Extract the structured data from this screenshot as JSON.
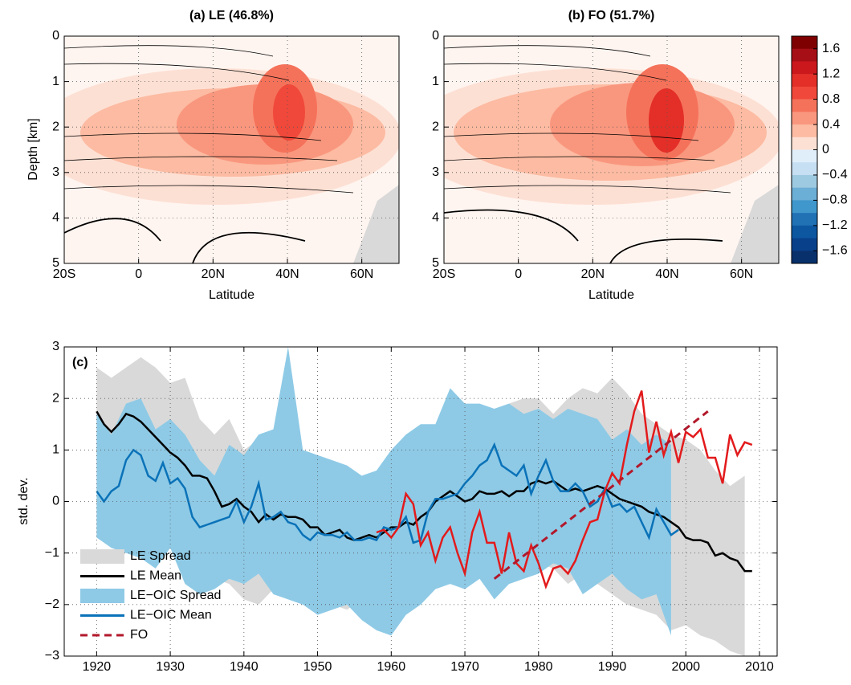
{
  "chart_data": [
    {
      "type": "contour",
      "title": "(a) LE (46.8%)",
      "xlabel": "Latitude",
      "ylabel": "Depth [km]",
      "xlim": [
        -20,
        70
      ],
      "xticks": [
        {
          "value": -20,
          "label": "20S"
        },
        0,
        {
          "value": 20,
          "label": "20N"
        },
        {
          "value": 40,
          "label": "40N"
        },
        {
          "value": 60,
          "label": "60N"
        }
      ],
      "ylim": [
        0,
        5
      ],
      "y_inverted": true,
      "yticks": [
        0,
        1,
        2,
        3,
        4,
        5
      ],
      "grid": true
    },
    {
      "type": "contour",
      "title": "(b) FO (51.7%)",
      "xlabel": "Latitude",
      "xlim": [
        -20,
        70
      ],
      "xticks": [
        {
          "value": -20,
          "label": "20S"
        },
        0,
        {
          "value": 20,
          "label": "20N"
        },
        {
          "value": 40,
          "label": "40N"
        },
        {
          "value": 60,
          "label": "60N"
        }
      ],
      "ylim": [
        0,
        5
      ],
      "y_inverted": true,
      "yticks": [
        0,
        1,
        2,
        3,
        4,
        5
      ],
      "grid": true,
      "colorbar": {
        "lim": [
          -1.8,
          1.8
        ],
        "ticks": [
          1.6,
          1.2,
          0.8,
          0.4,
          0,
          {
            "value": -0.4,
            "label": "−0.4"
          },
          {
            "value": -0.8,
            "label": "−0.8"
          },
          {
            "value": -1.2,
            "label": "−1.2"
          },
          {
            "value": -1.6,
            "label": "−1.6"
          }
        ],
        "colors": [
          "#7f0000",
          "#a50f15",
          "#cb181d",
          "#e32f27",
          "#f0483a",
          "#f5725a",
          "#f9977e",
          "#fcbba2",
          "#fde0d4",
          "#e0eefa",
          "#c6dff2",
          "#9ecae1",
          "#6baed6",
          "#3f97cc",
          "#2171b5",
          "#0d56a0",
          "#08408a",
          "#08306b"
        ]
      }
    },
    {
      "type": "line",
      "title": "(c)",
      "ylabel": "std. dev.",
      "xlim": [
        1915.6,
        2012.4
      ],
      "xticks": [
        1920,
        1930,
        1940,
        1950,
        1960,
        1970,
        1980,
        1990,
        2000,
        2010
      ],
      "ylim": [
        -3,
        3
      ],
      "yticks": [
        {
          "value": -3,
          "label": "−3"
        },
        {
          "value": -2,
          "label": "−2"
        },
        {
          "value": -1,
          "label": "−1"
        },
        0,
        1,
        2,
        3
      ],
      "grid": true,
      "x": [
        1920,
        1921,
        1922,
        1923,
        1924,
        1925,
        1926,
        1927,
        1928,
        1929,
        1930,
        1931,
        1932,
        1933,
        1934,
        1935,
        1936,
        1937,
        1938,
        1939,
        1940,
        1941,
        1942,
        1943,
        1944,
        1945,
        1946,
        1947,
        1948,
        1949,
        1950,
        1951,
        1952,
        1953,
        1954,
        1955,
        1956,
        1957,
        1958,
        1959,
        1960,
        1961,
        1962,
        1963,
        1964,
        1965,
        1966,
        1967,
        1968,
        1969,
        1970,
        1971,
        1972,
        1973,
        1974,
        1975,
        1976,
        1977,
        1978,
        1979,
        1980,
        1981,
        1982,
        1983,
        1984,
        1985,
        1986,
        1987,
        1988,
        1989,
        1990,
        1991,
        1992,
        1993,
        1994,
        1995,
        1996,
        1997,
        1998,
        1999,
        2000,
        2001,
        2002,
        2003,
        2004,
        2005,
        2006,
        2007,
        2008,
        2009
      ],
      "bands": [
        {
          "name": "LE Spread",
          "color": "#d9d9d9",
          "x": [
            1920,
            1922,
            1924,
            1926,
            1928,
            1930,
            1932,
            1934,
            1936,
            1938,
            1940,
            1942,
            1944,
            1946,
            1948,
            1950,
            1952,
            1954,
            1956,
            1958,
            1960,
            1962,
            1964,
            1966,
            1968,
            1970,
            1972,
            1974,
            1976,
            1978,
            1980,
            1982,
            1984,
            1986,
            1988,
            1990,
            1992,
            1994,
            1996,
            1998,
            2000,
            2002,
            2004,
            2006,
            2008
          ],
          "upper": [
            2.6,
            2.4,
            2.6,
            2.8,
            2.6,
            2.3,
            2.4,
            1.6,
            1.3,
            1.6,
            1.0,
            1.2,
            1.2,
            0.9,
            0.9,
            0.8,
            0.6,
            0.5,
            0.4,
            0.6,
            0.8,
            1.0,
            1.1,
            1.3,
            1.5,
            1.6,
            1.6,
            1.8,
            1.9,
            2.0,
            2.0,
            1.7,
            2.0,
            2.2,
            2.1,
            2.4,
            2.1,
            1.7,
            1.5,
            1.3,
            1.2,
            1.0,
            0.6,
            0.3,
            0.5
          ],
          "lower": [
            0.6,
            0.4,
            0.2,
            -0.2,
            -0.3,
            -0.8,
            -1.0,
            -1.2,
            -1.5,
            -1.6,
            -1.9,
            -2.0,
            -1.7,
            -1.9,
            -1.8,
            -1.9,
            -2.0,
            -2.1,
            -1.9,
            -2.2,
            -2.3,
            -2.0,
            -2.0,
            -1.6,
            -1.5,
            -1.4,
            -1.3,
            -1.2,
            -1.2,
            -1.3,
            -1.2,
            -1.3,
            -1.6,
            -1.4,
            -1.6,
            -1.8,
            -2.0,
            -2.1,
            -2.2,
            -2.5,
            -2.4,
            -2.6,
            -2.7,
            -2.9,
            -3.0
          ]
        },
        {
          "name": "LE−OIC Spread",
          "color": "#8ecae6",
          "x": [
            1920,
            1922,
            1924,
            1926,
            1928,
            1930,
            1932,
            1934,
            1936,
            1938,
            1940,
            1942,
            1944,
            1946,
            1948,
            1950,
            1952,
            1954,
            1956,
            1958,
            1960,
            1962,
            1964,
            1966,
            1968,
            1970,
            1972,
            1974,
            1976,
            1978,
            1980,
            1982,
            1984,
            1986,
            1988,
            1990,
            1992,
            1994,
            1996,
            1998
          ],
          "upper": [
            1.7,
            1.3,
            1.9,
            2.0,
            1.4,
            1.6,
            1.3,
            0.8,
            0.5,
            1.1,
            0.9,
            1.3,
            1.4,
            3.0,
            1.0,
            0.9,
            0.8,
            0.7,
            0.5,
            0.6,
            1.0,
            1.3,
            1.5,
            1.5,
            2.2,
            1.9,
            1.9,
            1.8,
            1.9,
            1.7,
            1.8,
            1.6,
            1.8,
            1.7,
            1.6,
            1.2,
            1.4,
            1.1,
            1.3,
            1.1
          ],
          "lower": [
            -0.7,
            -0.9,
            -1.0,
            -1.1,
            -1.3,
            -0.9,
            -1.6,
            -1.8,
            -1.7,
            -1.5,
            -1.6,
            -1.4,
            -1.8,
            -1.9,
            -2.0,
            -2.2,
            -2.1,
            -2.0,
            -2.3,
            -2.5,
            -2.6,
            -2.2,
            -2.0,
            -1.7,
            -1.6,
            -1.7,
            -1.5,
            -1.9,
            -1.6,
            -1.5,
            -1.4,
            -1.2,
            -1.3,
            -1.8,
            -1.6,
            -1.4,
            -1.7,
            -1.9,
            -1.8,
            -2.6
          ]
        }
      ],
      "series": [
        {
          "name": "LE Mean",
          "color": "#000000",
          "values": [
            1.75,
            1.5,
            1.35,
            1.5,
            1.7,
            1.65,
            1.55,
            1.4,
            1.25,
            1.1,
            0.95,
            0.85,
            0.7,
            0.5,
            0.5,
            0.45,
            0.2,
            -0.1,
            -0.05,
            0.05,
            -0.1,
            -0.2,
            -0.4,
            -0.25,
            -0.35,
            -0.25,
            -0.3,
            -0.3,
            -0.35,
            -0.5,
            -0.5,
            -0.65,
            -0.6,
            -0.55,
            -0.7,
            -0.75,
            -0.7,
            -0.65,
            -0.7,
            -0.6,
            -0.5,
            -0.5,
            -0.4,
            -0.45,
            -0.3,
            -0.2,
            0.0,
            0.1,
            0.2,
            0.1,
            0.0,
            0.05,
            0.2,
            0.15,
            0.15,
            0.2,
            0.1,
            0.2,
            0.2,
            0.35,
            0.4,
            0.35,
            0.4,
            0.3,
            0.2,
            0.25,
            0.2,
            0.25,
            0.3,
            0.25,
            0.15,
            0.05,
            0.0,
            -0.05,
            -0.1,
            -0.2,
            -0.25,
            -0.3,
            -0.4,
            -0.5,
            -0.7,
            -0.75,
            -0.75,
            -0.8,
            -1.05,
            -1.0,
            -1.1,
            -1.15,
            -1.35,
            -1.35
          ]
        },
        {
          "name": "LE−OIC Mean",
          "color": "#0a72b8",
          "values": [
            0.2,
            0.0,
            0.2,
            0.3,
            0.8,
            1.0,
            0.9,
            0.5,
            0.4,
            0.75,
            0.35,
            0.45,
            0.25,
            -0.3,
            -0.5,
            -0.45,
            -0.4,
            -0.35,
            -0.3,
            0.0,
            -0.4,
            -0.1,
            0.35,
            -0.35,
            -0.3,
            -0.2,
            -0.4,
            -0.45,
            -0.65,
            -0.75,
            -0.6,
            -0.65,
            -0.65,
            -0.7,
            -0.6,
            -0.75,
            -0.75,
            -0.7,
            -0.75,
            -0.5,
            -0.55,
            -0.5,
            -0.3,
            -0.8,
            -0.75,
            -0.2,
            0.05,
            0.05,
            0.1,
            0.15,
            0.35,
            0.5,
            0.7,
            0.8,
            1.1,
            0.7,
            0.6,
            0.5,
            0.7,
            0.15,
            0.5,
            0.8,
            0.4,
            0.2,
            0.2,
            0.35,
            0.2,
            -0.1,
            0.0,
            0.25,
            -0.1,
            -0.05,
            -0.2,
            -0.1,
            -0.4,
            -0.7,
            -0.15,
            -0.4,
            -0.65,
            -0.55,
            null,
            null,
            null,
            null,
            null,
            null,
            null,
            null,
            null,
            null
          ]
        },
        {
          "name": "FO",
          "color": "#e31a1c",
          "legend_dashed": true,
          "values": [
            null,
            null,
            null,
            null,
            null,
            null,
            null,
            null,
            null,
            null,
            null,
            null,
            null,
            null,
            null,
            null,
            null,
            null,
            null,
            null,
            null,
            null,
            null,
            null,
            null,
            null,
            null,
            null,
            null,
            null,
            null,
            null,
            null,
            null,
            null,
            null,
            null,
            null,
            -0.6,
            -0.55,
            -0.7,
            -0.5,
            0.15,
            -0.05,
            -0.85,
            -0.6,
            -1.15,
            -0.7,
            -0.5,
            -1.0,
            -1.4,
            -0.6,
            -0.2,
            -0.8,
            -0.8,
            -1.4,
            -0.6,
            -1.2,
            -1.35,
            -0.85,
            -1.2,
            -1.65,
            -1.3,
            -1.25,
            -1.4,
            -1.15,
            -0.75,
            -0.4,
            -0.35,
            0.2,
            0.55,
            0.35,
            1.1,
            1.75,
            2.15,
            0.95,
            1.55,
            0.9,
            1.35,
            0.75,
            1.35,
            1.25,
            1.4,
            0.85,
            0.85,
            0.35,
            1.3,
            0.9,
            1.15,
            1.1
          ],
          "trend": {
            "color": "#b2182b",
            "x": [
              1974,
              2003
            ],
            "values": [
              -1.5,
              1.75
            ]
          }
        }
      ],
      "legend": "lower left"
    }
  ]
}
